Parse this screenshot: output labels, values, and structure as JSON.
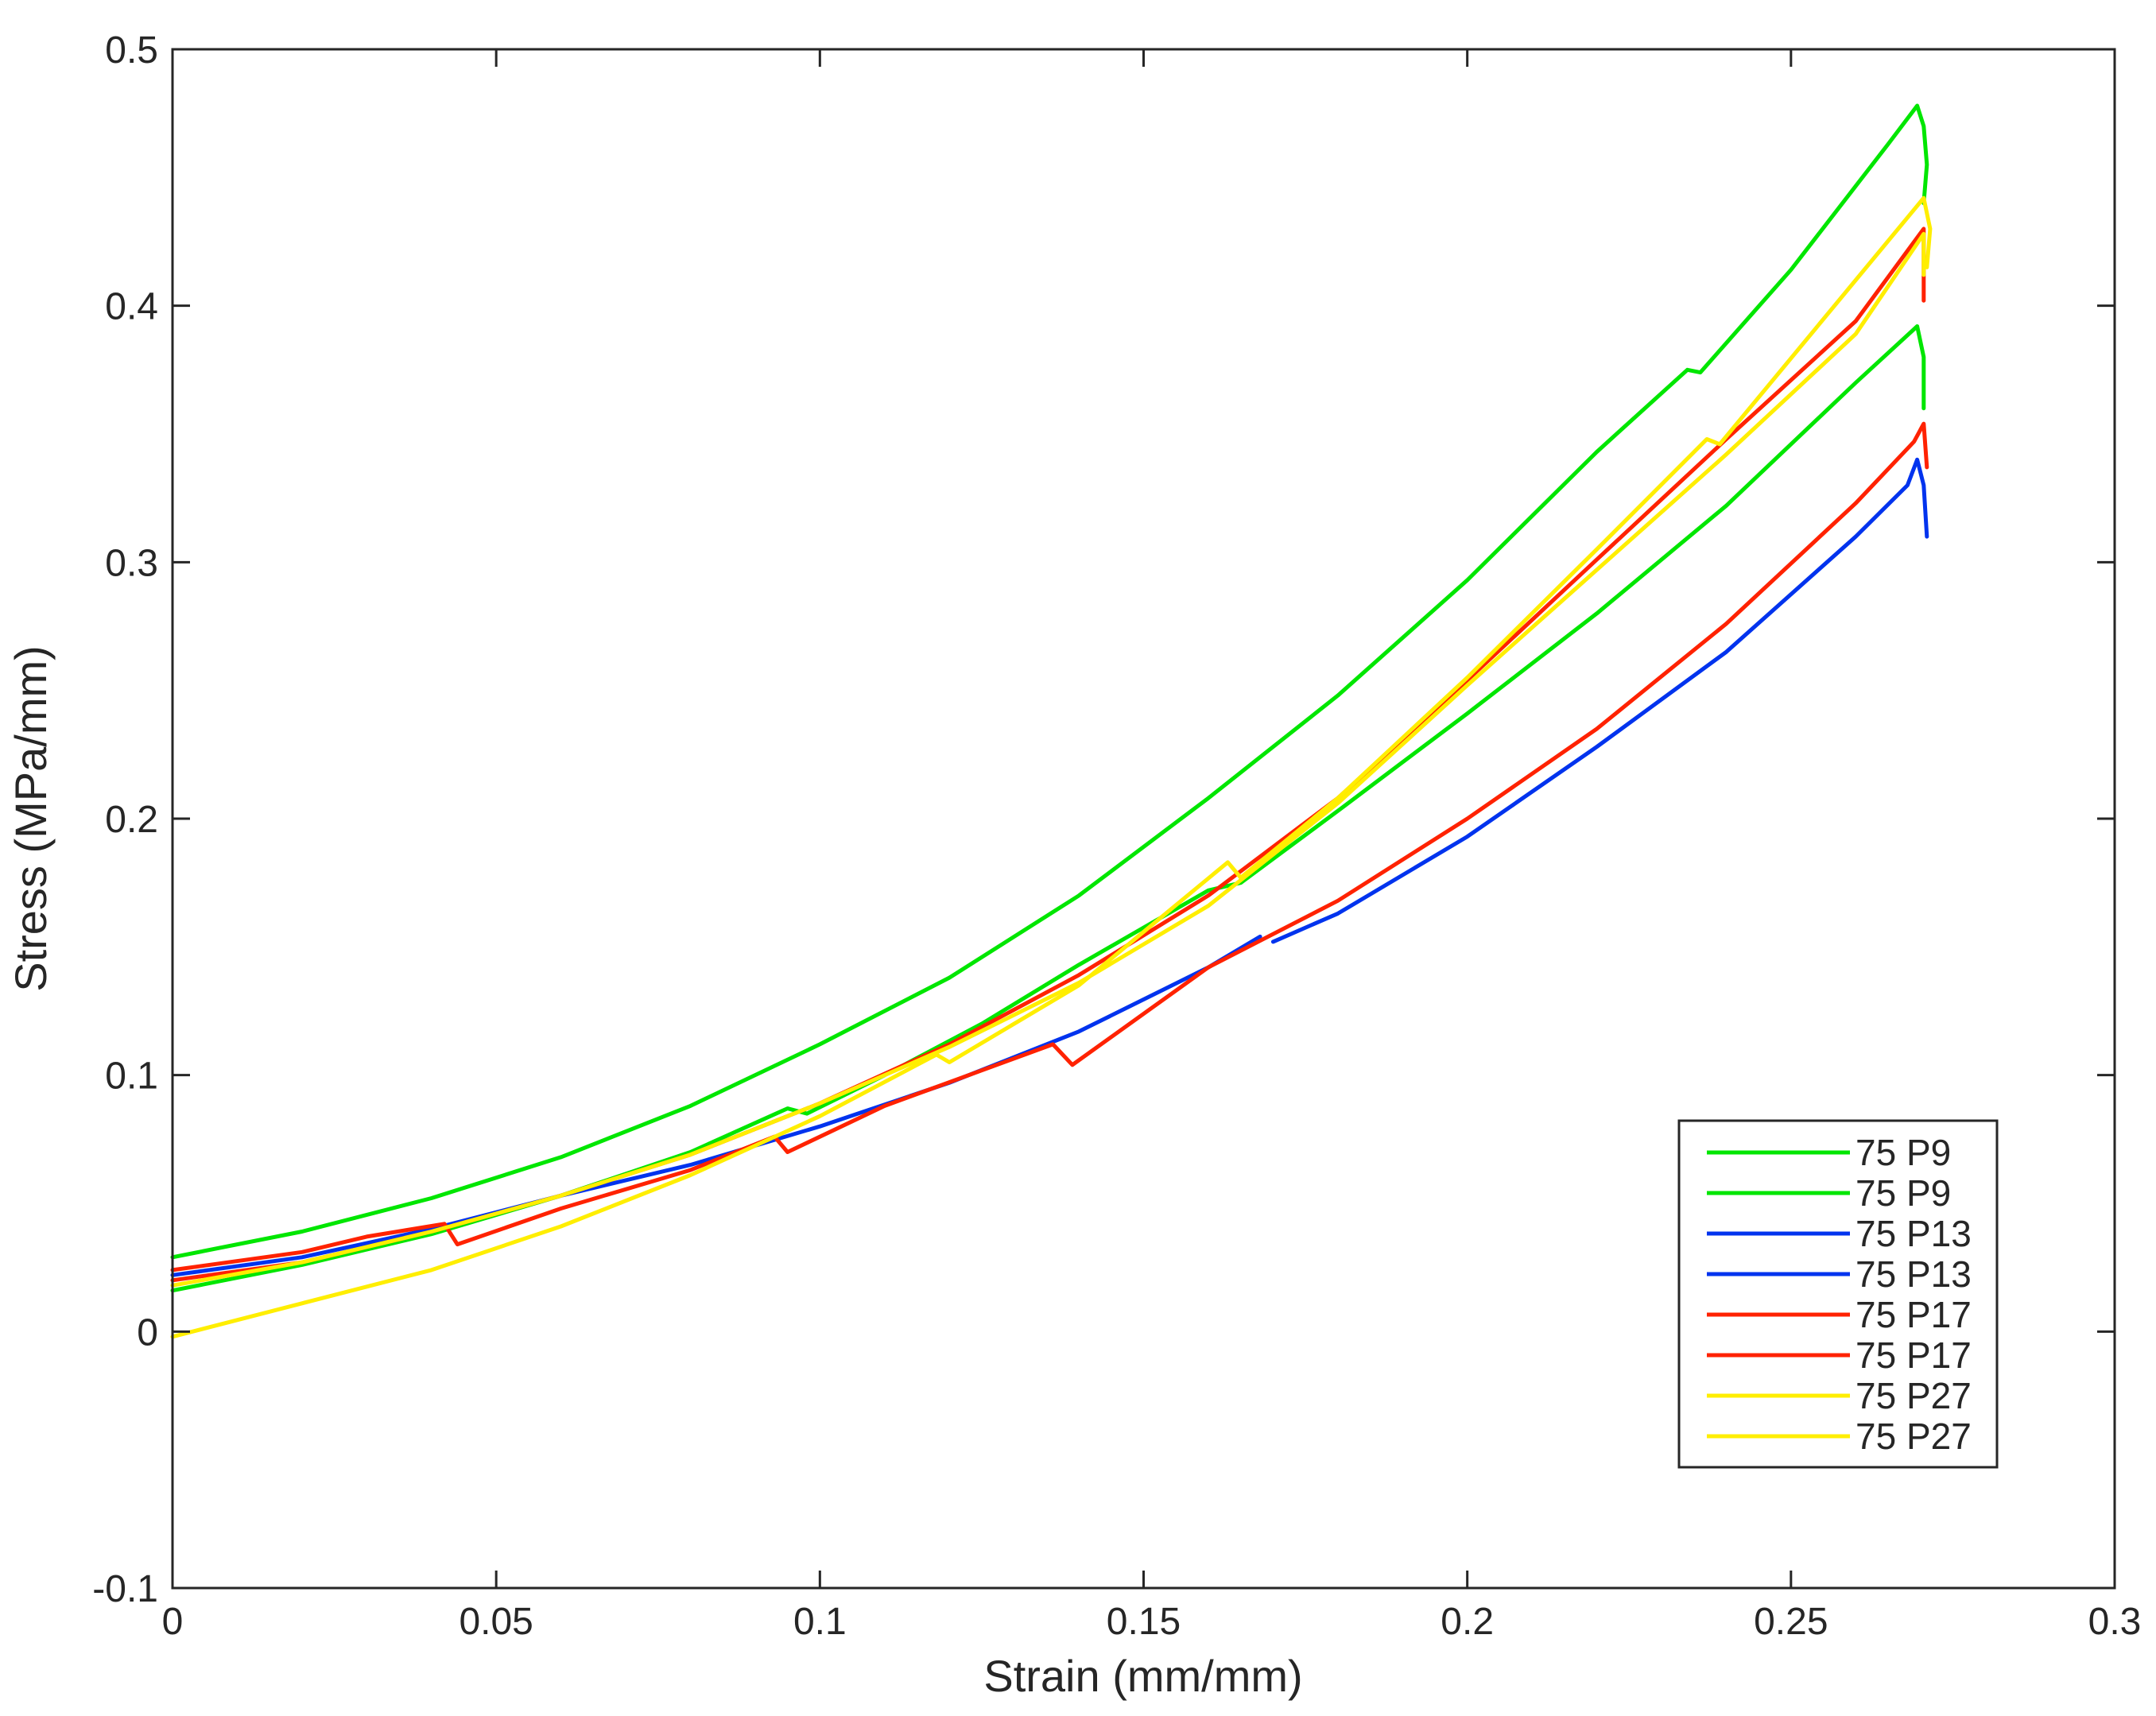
{
  "chart_data": {
    "type": "line",
    "title": "",
    "xlabel": "Strain (mm/mm)",
    "ylabel": "Stress (MPa/mm)",
    "xlim": [
      0,
      0.3
    ],
    "ylim": [
      -0.1,
      0.5
    ],
    "xticks": [
      0,
      0.05,
      0.1,
      0.15,
      0.2,
      0.25,
      0.3
    ],
    "xtick_labels": [
      "0",
      "0.05",
      "0.1",
      "0.15",
      "0.2",
      "0.25",
      "0.3"
    ],
    "yticks": [
      -0.1,
      0,
      0.1,
      0.2,
      0.3,
      0.4,
      0.5
    ],
    "ytick_labels": [
      "-0.1",
      "0",
      "0.1",
      "0.2",
      "0.3",
      "0.4",
      "0.5"
    ],
    "grid": false,
    "legend_position": "bottom-right",
    "series": [
      {
        "name": "75 P9",
        "color": "#00e600",
        "x": [
          0,
          0.02,
          0.04,
          0.06,
          0.08,
          0.1,
          0.12,
          0.14,
          0.16,
          0.18,
          0.2,
          0.22,
          0.234,
          0.236,
          0.25,
          0.265,
          0.2695,
          0.2705,
          0.271,
          0.2705
        ],
        "y": [
          0.029,
          0.039,
          0.052,
          0.068,
          0.088,
          0.112,
          0.138,
          0.17,
          0.208,
          0.248,
          0.293,
          0.343,
          0.375,
          0.374,
          0.414,
          0.463,
          0.478,
          0.47,
          0.455,
          0.44
        ]
      },
      {
        "name": "75 P9",
        "color": "#00e600",
        "x": [
          0,
          0.02,
          0.04,
          0.06,
          0.08,
          0.095,
          0.098,
          0.11,
          0.125,
          0.14,
          0.16,
          0.165,
          0.18,
          0.2,
          0.22,
          0.24,
          0.26,
          0.2695,
          0.2705,
          0.2705
        ],
        "y": [
          0.016,
          0.026,
          0.038,
          0.053,
          0.07,
          0.087,
          0.085,
          0.1,
          0.12,
          0.143,
          0.172,
          0.175,
          0.203,
          0.241,
          0.28,
          0.322,
          0.37,
          0.392,
          0.38,
          0.36
        ]
      },
      {
        "name": "75 P13",
        "color": "#0033ee",
        "x": [
          0,
          0.02,
          0.04,
          0.06,
          0.08,
          0.1,
          0.12,
          0.14,
          0.16,
          0.168
        ],
        "y": [
          0.022,
          0.029,
          0.04,
          0.053,
          0.065,
          0.08,
          0.097,
          0.117,
          0.142,
          0.154
        ]
      },
      {
        "name": "75 P13",
        "color": "#0033ee",
        "x": [
          0.17,
          0.18,
          0.2,
          0.22,
          0.24,
          0.26,
          0.268,
          0.2695,
          0.2705,
          0.271
        ],
        "y": [
          0.152,
          0.163,
          0.193,
          0.228,
          0.265,
          0.31,
          0.33,
          0.34,
          0.33,
          0.31
        ]
      },
      {
        "name": "75 P17",
        "color": "#ff2200",
        "x": [
          0,
          0.02,
          0.03,
          0.042,
          0.044,
          0.06,
          0.08,
          0.093,
          0.095,
          0.11,
          0.136,
          0.139,
          0.16,
          0.18,
          0.2,
          0.22,
          0.24,
          0.26,
          0.269,
          0.2705,
          0.271
        ],
        "y": [
          0.024,
          0.031,
          0.037,
          0.042,
          0.034,
          0.048,
          0.063,
          0.076,
          0.07,
          0.088,
          0.112,
          0.104,
          0.142,
          0.168,
          0.2,
          0.235,
          0.276,
          0.323,
          0.347,
          0.354,
          0.337
        ]
      },
      {
        "name": "75 P17",
        "color": "#ff2200",
        "x": [
          0,
          0.02,
          0.04,
          0.06,
          0.08,
          0.1,
          0.12,
          0.14,
          0.16,
          0.18,
          0.2,
          0.22,
          0.24,
          0.26,
          0.2705,
          0.2705
        ],
        "y": [
          0.02,
          0.027,
          0.039,
          0.053,
          0.069,
          0.089,
          0.112,
          0.139,
          0.17,
          0.208,
          0.254,
          0.301,
          0.348,
          0.394,
          0.43,
          0.402
        ]
      },
      {
        "name": "75 P27",
        "color": "#ffee00",
        "x": [
          0,
          0.02,
          0.04,
          0.06,
          0.08,
          0.1,
          0.118,
          0.12,
          0.14,
          0.163,
          0.165,
          0.18,
          0.2,
          0.22,
          0.237,
          0.239,
          0.26,
          0.2705,
          0.2715,
          0.271
        ],
        "y": [
          -0.002,
          0.011,
          0.024,
          0.041,
          0.061,
          0.084,
          0.108,
          0.105,
          0.135,
          0.183,
          0.177,
          0.208,
          0.255,
          0.305,
          0.348,
          0.346,
          0.41,
          0.442,
          0.43,
          0.415
        ]
      },
      {
        "name": "75 P27",
        "color": "#ffee00",
        "x": [
          0,
          0.02,
          0.04,
          0.06,
          0.08,
          0.1,
          0.12,
          0.14,
          0.16,
          0.18,
          0.2,
          0.22,
          0.24,
          0.26,
          0.2705,
          0.2705
        ],
        "y": [
          0.018,
          0.027,
          0.039,
          0.053,
          0.069,
          0.089,
          0.111,
          0.136,
          0.166,
          0.206,
          0.252,
          0.297,
          0.342,
          0.389,
          0.428,
          0.412
        ]
      }
    ]
  },
  "colors": {
    "axis": "#262626",
    "background": "#ffffff"
  }
}
